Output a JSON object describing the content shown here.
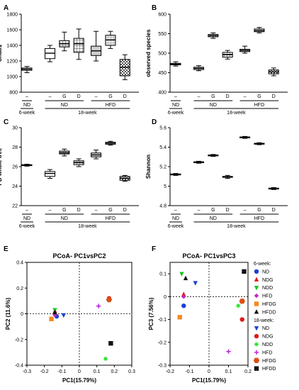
{
  "chart_data": [
    {
      "panel": "A",
      "type": "box",
      "ylabel": "Chao1",
      "yticks": [
        800,
        1000,
        1200,
        1400,
        1600,
        1800
      ],
      "ylim": [
        800,
        1800
      ],
      "groups": [
        {
          "label": "–",
          "min": 1050,
          "q1": 1080,
          "median": 1095,
          "q3": 1110,
          "max": 1130,
          "fill": "white"
        },
        {
          "label": "–",
          "min": 1190,
          "q1": 1230,
          "median": 1300,
          "q3": 1360,
          "max": 1400,
          "fill": "white"
        },
        {
          "label": "G",
          "min": 1330,
          "q1": 1380,
          "median": 1420,
          "q3": 1460,
          "max": 1570,
          "fill": "grid"
        },
        {
          "label": "D",
          "min": 1220,
          "q1": 1310,
          "median": 1420,
          "q3": 1490,
          "max": 1610,
          "fill": "grid"
        },
        {
          "label": "–",
          "min": 1200,
          "q1": 1270,
          "median": 1330,
          "q3": 1390,
          "max": 1580,
          "fill": "grey"
        },
        {
          "label": "G",
          "min": 1360,
          "q1": 1400,
          "median": 1470,
          "q3": 1530,
          "max": 1580,
          "fill": "lightgrid"
        },
        {
          "label": "D",
          "min": 960,
          "q1": 1010,
          "median": 1120,
          "q3": 1220,
          "max": 1280,
          "fill": "check"
        }
      ]
    },
    {
      "panel": "B",
      "type": "box",
      "ylabel": "observed species",
      "yticks": [
        400,
        450,
        500,
        550,
        600
      ],
      "ylim": [
        400,
        600
      ],
      "groups": [
        {
          "label": "–",
          "min": 467,
          "q1": 470,
          "median": 472,
          "q3": 474,
          "max": 478,
          "fill": "white"
        },
        {
          "label": "–",
          "min": 455,
          "q1": 458,
          "median": 461,
          "q3": 464,
          "max": 468,
          "fill": "white"
        },
        {
          "label": "G",
          "min": 538,
          "q1": 542,
          "median": 545,
          "q3": 548,
          "max": 552,
          "fill": "grid"
        },
        {
          "label": "D",
          "min": 485,
          "q1": 490,
          "median": 496,
          "q3": 502,
          "max": 507,
          "fill": "grid"
        },
        {
          "label": "–",
          "min": 500,
          "q1": 504,
          "median": 507,
          "q3": 510,
          "max": 518,
          "fill": "grey"
        },
        {
          "label": "G",
          "min": 552,
          "q1": 555,
          "median": 558,
          "q3": 562,
          "max": 566,
          "fill": "lightgrid"
        },
        {
          "label": "D",
          "min": 442,
          "q1": 447,
          "median": 452,
          "q3": 457,
          "max": 462,
          "fill": "check"
        }
      ]
    },
    {
      "panel": "C",
      "type": "box",
      "ylabel": "PD whole tree",
      "yticks": [
        22,
        24,
        26,
        28,
        30
      ],
      "ylim": [
        22,
        30
      ],
      "groups": [
        {
          "label": "–",
          "min": 26.05,
          "q1": 26.1,
          "median": 26.15,
          "q3": 26.2,
          "max": 26.25,
          "fill": "white"
        },
        {
          "label": "–",
          "min": 24.8,
          "q1": 25.0,
          "median": 25.3,
          "q3": 25.5,
          "max": 25.7,
          "fill": "white"
        },
        {
          "label": "G",
          "min": 27.1,
          "q1": 27.3,
          "median": 27.45,
          "q3": 27.6,
          "max": 27.8,
          "fill": "grid"
        },
        {
          "label": "D",
          "min": 26.0,
          "q1": 26.2,
          "median": 26.4,
          "q3": 26.6,
          "max": 26.8,
          "fill": "grid"
        },
        {
          "label": "–",
          "min": 26.8,
          "q1": 27.0,
          "median": 27.2,
          "q3": 27.4,
          "max": 27.7,
          "fill": "grey"
        },
        {
          "label": "G",
          "min": 28.2,
          "q1": 28.3,
          "median": 28.4,
          "q3": 28.5,
          "max": 28.6,
          "fill": "lightgrid"
        },
        {
          "label": "D",
          "min": 24.5,
          "q1": 24.6,
          "median": 24.8,
          "q3": 25.0,
          "max": 25.1,
          "fill": "check"
        }
      ]
    },
    {
      "panel": "D",
      "type": "box",
      "ylabel": "Shannon",
      "yticks": [
        4.8,
        5.0,
        5.2,
        5.4,
        5.6
      ],
      "ylim": [
        4.8,
        5.6
      ],
      "groups": [
        {
          "label": "–",
          "min": 5.11,
          "q1": 5.115,
          "median": 5.12,
          "q3": 5.125,
          "max": 5.13,
          "fill": "white"
        },
        {
          "label": "–",
          "min": 5.235,
          "q1": 5.24,
          "median": 5.245,
          "q3": 5.25,
          "max": 5.255,
          "fill": "white"
        },
        {
          "label": "G",
          "min": 5.305,
          "q1": 5.31,
          "median": 5.315,
          "q3": 5.32,
          "max": 5.325,
          "fill": "grid"
        },
        {
          "label": "D",
          "min": 5.08,
          "q1": 5.09,
          "median": 5.095,
          "q3": 5.1,
          "max": 5.11,
          "fill": "grid"
        },
        {
          "label": "–",
          "min": 5.49,
          "q1": 5.495,
          "median": 5.5,
          "q3": 5.505,
          "max": 5.51,
          "fill": "grey"
        },
        {
          "label": "G",
          "min": 5.425,
          "q1": 5.43,
          "median": 5.435,
          "q3": 5.44,
          "max": 5.445,
          "fill": "lightgrid"
        },
        {
          "label": "D",
          "min": 4.965,
          "q1": 4.97,
          "median": 4.975,
          "q3": 4.98,
          "max": 4.985,
          "fill": "check"
        }
      ]
    },
    {
      "panel": "E",
      "type": "scatter",
      "title": "PCoA- PC1vsPC2",
      "xlabel": "PC1(15.79%)",
      "ylabel": "PC2 (11.6%)",
      "xticks": [
        -0.3,
        -0.2,
        -0.1,
        0.0,
        0.1,
        0.2,
        0.3
      ],
      "yticks": [
        -0.4,
        -0.2,
        0.0,
        0.2,
        0.4
      ],
      "xlim": [
        -0.3,
        0.3
      ],
      "ylim": [
        -0.4,
        0.4
      ],
      "points": [
        {
          "s": "6-ND",
          "x": -0.13,
          "y": -0.02
        },
        {
          "s": "6-NDG",
          "x": -0.14,
          "y": 0.02
        },
        {
          "s": "6-NDD",
          "x": -0.14,
          "y": 0.03
        },
        {
          "s": "6-HFD",
          "x": -0.14,
          "y": -0.01
        },
        {
          "s": "6-HFDG",
          "x": -0.16,
          "y": -0.04
        },
        {
          "s": "6-HFDD",
          "x": -0.14,
          "y": 0.01
        },
        {
          "s": "18-ND",
          "x": -0.09,
          "y": -0.01
        },
        {
          "s": "18-NDG",
          "x": 0.17,
          "y": 0.12
        },
        {
          "s": "18-NDD",
          "x": 0.15,
          "y": -0.35
        },
        {
          "s": "18-HFD",
          "x": 0.11,
          "y": 0.06
        },
        {
          "s": "18-HFDG",
          "x": 0.17,
          "y": 0.11
        },
        {
          "s": "18-HFDD",
          "x": 0.18,
          "y": -0.23
        }
      ]
    },
    {
      "panel": "F",
      "type": "scatter",
      "title": "PCoA- PC1vsPC3",
      "xlabel": "PC1(15.79%)",
      "ylabel": "PC3 (7.56%)",
      "xticks": [
        -0.2,
        -0.1,
        0.0,
        0.1,
        0.2
      ],
      "yticks": [
        -0.3,
        -0.2,
        -0.1,
        0.0,
        0.1
      ],
      "xlim": [
        -0.2,
        0.2
      ],
      "ylim": [
        -0.3,
        0.15
      ],
      "points": [
        {
          "s": "6-ND",
          "x": -0.13,
          "y": -0.04
        },
        {
          "s": "6-NDG",
          "x": -0.13,
          "y": 0.01
        },
        {
          "s": "6-NDD",
          "x": -0.14,
          "y": 0.1
        },
        {
          "s": "6-HFD",
          "x": -0.13,
          "y": 0.0
        },
        {
          "s": "6-HFDG",
          "x": -0.15,
          "y": -0.09
        },
        {
          "s": "6-HFDD",
          "x": -0.12,
          "y": 0.08
        },
        {
          "s": "18-ND",
          "x": -0.07,
          "y": 0.06
        },
        {
          "s": "18-NDG",
          "x": 0.17,
          "y": -0.1
        },
        {
          "s": "18-NDD",
          "x": 0.15,
          "y": -0.04
        },
        {
          "s": "18-HFD",
          "x": 0.1,
          "y": -0.24
        },
        {
          "s": "18-HFDG",
          "x": 0.17,
          "y": -0.02
        },
        {
          "s": "18-HFDD",
          "x": 0.18,
          "y": 0.11
        }
      ],
      "legend": {
        "header6": "6-week:",
        "header18": "18-week:",
        "items": [
          {
            "s": "6-ND",
            "label": "ND",
            "marker": "circle",
            "color": "#1a3fd6"
          },
          {
            "s": "6-NDG",
            "label": "NDG",
            "marker": "triangle",
            "color": "#e01919"
          },
          {
            "s": "6-NDD",
            "label": "NDD",
            "marker": "tri-down",
            "color": "#19c219"
          },
          {
            "s": "6-HFD",
            "label": "HFD",
            "marker": "diamond",
            "color": "#c227c2"
          },
          {
            "s": "6-HFDG",
            "label": "HFDG",
            "marker": "square",
            "color": "#f58a1f"
          },
          {
            "s": "6-HFDD",
            "label": "HFDD",
            "marker": "triangle",
            "color": "#111111"
          },
          {
            "s": "18-ND",
            "label": "ND",
            "marker": "tri-down",
            "color": "#1a3fd6"
          },
          {
            "s": "18-NDG",
            "label": "NDG",
            "marker": "circle",
            "color": "#e01919"
          },
          {
            "s": "18-NDD",
            "label": "NDD",
            "marker": "star",
            "color": "#19e01c"
          },
          {
            "s": "18-HFD",
            "label": "HFD",
            "marker": "plus",
            "color": "#b31fd6"
          },
          {
            "s": "18-HFDG",
            "label": "HFDG",
            "marker": "hexagon",
            "color": "#d94f12"
          },
          {
            "s": "18-HFDD",
            "label": "HFDD",
            "marker": "square",
            "color": "#111111"
          }
        ]
      }
    }
  ],
  "box_group_labels": {
    "nd6": "ND",
    "week6": "6-week",
    "nd18": "ND",
    "hfd18": "HFD",
    "week18": "18-week"
  }
}
